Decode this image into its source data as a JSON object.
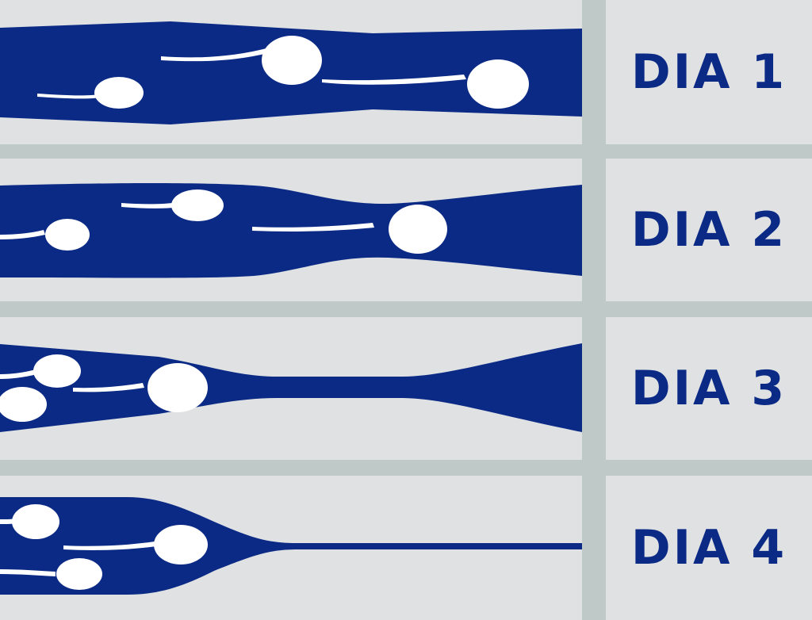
{
  "colors": {
    "background": "#bfc9c7",
    "panel": "#dfe1e3",
    "channel": "#0b2a85",
    "sperm": "#ffffff",
    "label_text": "#0b2a85"
  },
  "rows": [
    {
      "label": "DIA 1"
    },
    {
      "label": "DIA 2"
    },
    {
      "label": "DIA 3"
    },
    {
      "label": "DIA 4"
    }
  ]
}
